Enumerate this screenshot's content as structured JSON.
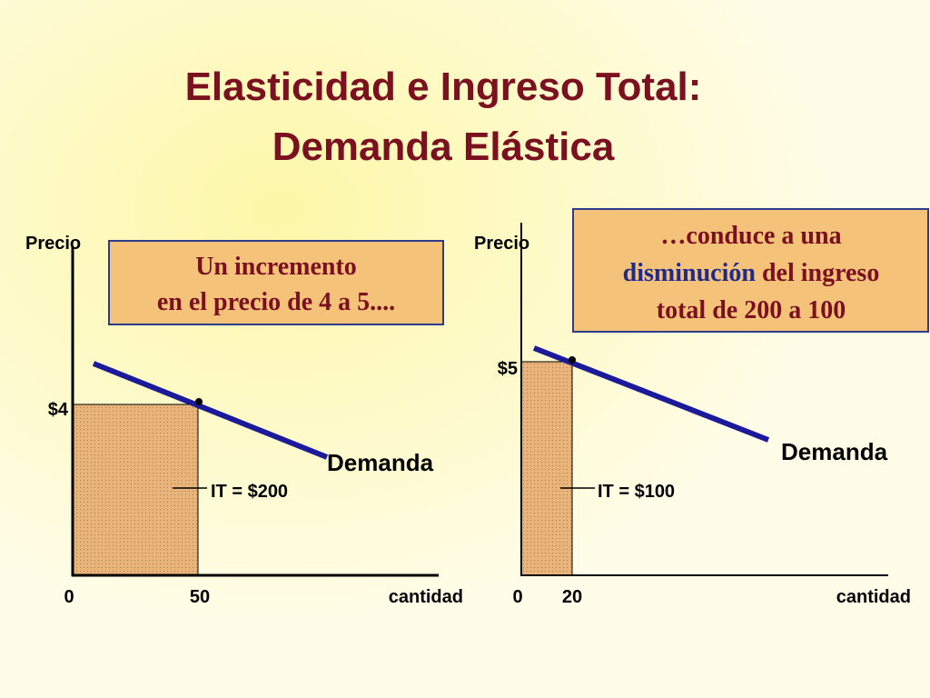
{
  "title": [
    "Elasticidad e Ingreso Total:",
    "Demanda Elástica"
  ],
  "panels": [
    {
      "y_label": "Precio",
      "x_label": "cantidad",
      "origin": "0",
      "price": "$4",
      "quantity": "50",
      "curve": "Demanda",
      "area_label": "IT = $200",
      "note": [
        "Un incremento",
        "en el precio de 4 a 5...."
      ]
    },
    {
      "y_label": "Precio",
      "x_label": "cantidad",
      "origin": "0",
      "price": "$5",
      "quantity": "20",
      "curve": "Demanda",
      "area_label": "IT = $100",
      "note": [
        "…conduce a una",
        "disminución",
        "del ingreso",
        "total de 200 a 100"
      ]
    }
  ]
}
